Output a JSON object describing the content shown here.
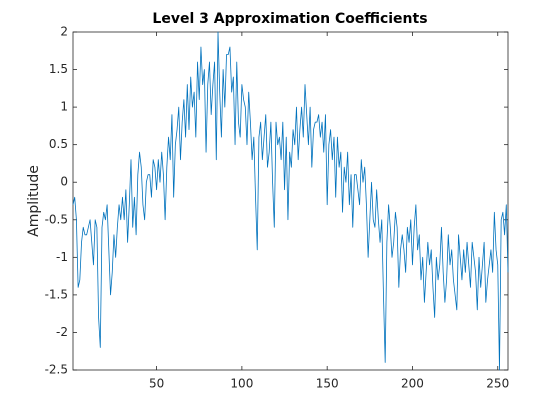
{
  "chart_data": {
    "type": "line",
    "title": "Level 3 Approximation Coefficients",
    "ylabel": "Amplitude",
    "color": "#0072bd",
    "xlim": [
      1,
      256
    ],
    "xticks": [
      50,
      100,
      150,
      200,
      250
    ],
    "ylim": [
      -2.5,
      2
    ],
    "yticks": [
      -2.5,
      -2,
      -1.5,
      -1,
      -0.5,
      0,
      0.5,
      1,
      1.5,
      2
    ],
    "grid": false,
    "x": [
      1,
      2,
      3,
      4,
      5,
      6,
      7,
      8,
      9,
      10,
      11,
      12,
      13,
      14,
      15,
      16,
      17,
      18,
      19,
      20,
      21,
      22,
      23,
      24,
      25,
      26,
      27,
      28,
      29,
      30,
      31,
      32,
      33,
      34,
      35,
      36,
      37,
      38,
      39,
      40,
      41,
      42,
      43,
      44,
      45,
      46,
      47,
      48,
      49,
      50,
      51,
      52,
      53,
      54,
      55,
      56,
      57,
      58,
      59,
      60,
      61,
      62,
      63,
      64,
      65,
      66,
      67,
      68,
      69,
      70,
      71,
      72,
      73,
      74,
      75,
      76,
      77,
      78,
      79,
      80,
      81,
      82,
      83,
      84,
      85,
      86,
      87,
      88,
      89,
      90,
      91,
      92,
      93,
      94,
      95,
      96,
      97,
      98,
      99,
      100,
      101,
      102,
      103,
      104,
      105,
      106,
      107,
      108,
      109,
      110,
      111,
      112,
      113,
      114,
      115,
      116,
      117,
      118,
      119,
      120,
      121,
      122,
      123,
      124,
      125,
      126,
      127,
      128,
      129,
      130,
      131,
      132,
      133,
      134,
      135,
      136,
      137,
      138,
      139,
      140,
      141,
      142,
      143,
      144,
      145,
      146,
      147,
      148,
      149,
      150,
      151,
      152,
      153,
      154,
      155,
      156,
      157,
      158,
      159,
      160,
      161,
      162,
      163,
      164,
      165,
      166,
      167,
      168,
      169,
      170,
      171,
      172,
      173,
      174,
      175,
      176,
      177,
      178,
      179,
      180,
      181,
      182,
      183,
      184,
      185,
      186,
      187,
      188,
      189,
      190,
      191,
      192,
      193,
      194,
      195,
      196,
      197,
      198,
      199,
      200,
      201,
      202,
      203,
      204,
      205,
      206,
      207,
      208,
      209,
      210,
      211,
      212,
      213,
      214,
      215,
      216,
      217,
      218,
      219,
      220,
      221,
      222,
      223,
      224,
      225,
      226,
      227,
      228,
      229,
      230,
      231,
      232,
      233,
      234,
      235,
      236,
      237,
      238,
      239,
      240,
      241,
      242,
      243,
      244,
      245,
      246,
      247,
      248,
      249,
      250,
      251,
      252,
      253,
      254,
      255,
      256
    ],
    "values": [
      -0.3,
      -0.2,
      -0.5,
      -1.4,
      -1.3,
      -0.8,
      -0.6,
      -0.7,
      -0.7,
      -0.6,
      -0.5,
      -0.8,
      -1.1,
      -0.5,
      -0.6,
      -1.8,
      -2.2,
      -0.6,
      -0.4,
      -0.5,
      -0.3,
      -0.9,
      -1.5,
      -1.2,
      -0.7,
      -1.0,
      -0.6,
      -0.3,
      -0.5,
      -0.2,
      -0.5,
      -0.1,
      -0.8,
      -0.3,
      0.3,
      -0.6,
      -0.2,
      -0.7,
      0.1,
      0.4,
      0.2,
      -0.3,
      -0.5,
      0.0,
      0.1,
      0.1,
      -0.2,
      0.3,
      0.2,
      -0.1,
      0.3,
      0.0,
      0.4,
      0.1,
      -0.5,
      0.2,
      0.6,
      0.3,
      0.9,
      -0.2,
      0.5,
      0.7,
      1.0,
      0.3,
      0.8,
      1.1,
      0.6,
      1.3,
      0.7,
      1.4,
      1.0,
      1.2,
      0.6,
      1.6,
      1.1,
      1.8,
      1.3,
      1.5,
      0.4,
      1.3,
      1.6,
      0.9,
      1.3,
      1.6,
      0.3,
      2.0,
      1.2,
      0.6,
      1.5,
      1.0,
      1.7,
      1.7,
      1.8,
      1.2,
      1.4,
      0.5,
      1.6,
      0.8,
      0.6,
      1.3,
      1.1,
      1.0,
      0.5,
      1.2,
      0.8,
      0.3,
      0.6,
      -0.2,
      -0.9,
      0.6,
      0.8,
      0.3,
      0.6,
      0.9,
      0.2,
      0.4,
      0.8,
      0.0,
      -0.6,
      0.8,
      0.5,
      0.6,
      0.3,
      0.8,
      -0.1,
      0.6,
      -0.5,
      0.4,
      0.2,
      0.7,
      0.5,
      1.0,
      0.3,
      0.7,
      1.0,
      0.6,
      1.3,
      0.9,
      0.5,
      1.0,
      0.2,
      0.7,
      0.8,
      0.8,
      0.9,
      0.6,
      0.8,
      0.4,
      0.9,
      -0.3,
      0.5,
      0.7,
      0.3,
      0.6,
      -0.2,
      0.6,
      0.2,
      0.4,
      -0.4,
      0.2,
      0.0,
      0.4,
      -0.3,
      0.1,
      -0.6,
      0.1,
      0.1,
      -0.1,
      -0.3,
      0.3,
      0.0,
      0.2,
      -0.3,
      -1.0,
      -0.5,
      0.0,
      -0.5,
      -0.6,
      -0.1,
      -0.5,
      -0.8,
      -0.5,
      -1.5,
      -2.4,
      -0.8,
      -0.3,
      -0.6,
      -1.0,
      -0.8,
      -0.4,
      -0.6,
      -1.4,
      -0.9,
      -0.7,
      -0.9,
      -1.2,
      -0.6,
      -0.8,
      -0.5,
      -1.1,
      -0.6,
      -0.3,
      -0.9,
      -0.7,
      -1.3,
      -1.0,
      -1.6,
      -1.2,
      -0.8,
      -1.1,
      -0.9,
      -1.4,
      -1.8,
      -1.0,
      -1.3,
      -1.1,
      -0.6,
      -1.2,
      -1.6,
      -1.3,
      -0.7,
      -1.1,
      -0.9,
      -1.3,
      -1.5,
      -1.7,
      -0.7,
      -1.0,
      -1.3,
      -0.9,
      -1.2,
      -0.8,
      -1.1,
      -1.4,
      -0.8,
      -1.0,
      -1.2,
      -1.7,
      -1.0,
      -1.4,
      -1.1,
      -0.8,
      -1.6,
      -1.3,
      -1.1,
      -0.9,
      -1.2,
      -0.4,
      -0.9,
      -1.1,
      -2.5,
      -0.5,
      -0.4,
      -0.7,
      -0.3,
      -1.2
    ]
  }
}
